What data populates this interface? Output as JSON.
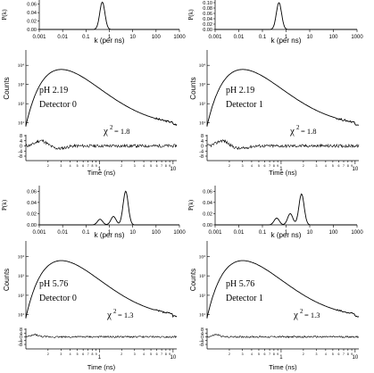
{
  "chart_data": [
    {
      "type": "line",
      "title": "",
      "panel": "pH 2.19 Detector 0",
      "pk_label": "P(k)",
      "k_label": "k (per ns)",
      "k_ticks": [
        "0.001",
        "0.01",
        "0.1",
        "1",
        "10",
        "100",
        "1000"
      ],
      "pk_ticks": [
        "0.00",
        "0.02",
        "0.04",
        "0.06"
      ],
      "pk_range": [
        0,
        0.07
      ],
      "k_peaks": [
        {
          "k": 0.5,
          "p": 0.065
        }
      ],
      "counts_label": "Counts",
      "counts_ticks": [
        "10¹",
        "10²",
        "10³",
        "10⁴"
      ],
      "ph_label": "pH 2.19",
      "detector_label": "Detector 0",
      "chi_label": "χ",
      "chi_sup": "2",
      "chi_value": "= 1.8",
      "resid_ticks": [
        "8",
        "4",
        "0",
        "-4",
        "-8"
      ],
      "time_label": "Time (ns)",
      "time_major_ticks": [
        "1",
        "10"
      ],
      "time_minor_ticks": [
        "2",
        "3",
        "4",
        "5",
        "6",
        "7",
        "8",
        "9",
        "2",
        "3",
        "4",
        "5",
        "6",
        "7",
        "8",
        "9"
      ]
    },
    {
      "type": "line",
      "title": "",
      "panel": "pH 2.19 Detector 1",
      "pk_label": "P(k)",
      "k_label": "k (per ns)",
      "k_ticks": [
        "0.001",
        "0.01",
        "0.1",
        "1",
        "10",
        "100",
        "1000"
      ],
      "pk_ticks": [
        "0.00",
        "0.02",
        "0.04",
        "0.06",
        "0.08",
        "0.10"
      ],
      "pk_range": [
        0,
        0.11
      ],
      "k_peaks": [
        {
          "k": 0.5,
          "p": 0.1
        }
      ],
      "counts_label": "Counts",
      "counts_ticks": [
        "10¹",
        "10²",
        "10³",
        "10⁴"
      ],
      "ph_label": "pH 2.19",
      "detector_label": "Detector 1",
      "chi_label": "χ",
      "chi_sup": "2",
      "chi_value": "= 1.8",
      "resid_ticks": [
        "8",
        "4",
        "0",
        "-4",
        "-8"
      ],
      "time_label": "Time (ns)",
      "time_major_ticks": [
        "1",
        "10"
      ],
      "time_minor_ticks": [
        "2",
        "3",
        "4",
        "5",
        "6",
        "7",
        "8",
        "9",
        "2",
        "3",
        "4",
        "5",
        "6",
        "7",
        "8",
        "9"
      ]
    },
    {
      "type": "line",
      "title": "",
      "panel": "pH 5.76 Detector 0",
      "pk_label": "P(k)",
      "k_label": "k (per ns)",
      "k_ticks": [
        "0.001",
        "0.01",
        "0.1",
        "1",
        "10",
        "100",
        "1000"
      ],
      "pk_ticks": [
        "0.00",
        "0.02",
        "0.04",
        "0.06"
      ],
      "pk_range": [
        0,
        0.07
      ],
      "k_peaks": [
        {
          "k": 0.4,
          "p": 0.01
        },
        {
          "k": 1.5,
          "p": 0.015
        },
        {
          "k": 5.0,
          "p": 0.06
        }
      ],
      "counts_label": "Counts",
      "counts_ticks": [
        "10¹",
        "10²",
        "10³",
        "10⁴"
      ],
      "ph_label": "pH 5.76",
      "detector_label": "Detector 0",
      "chi_label": "χ",
      "chi_sup": "2",
      "chi_value": "= 1.3",
      "resid_ticks": [
        "8",
        "4",
        "0",
        "-4",
        "-8"
      ],
      "time_label": "Time (ns)",
      "time_major_ticks": [
        "1",
        "10"
      ],
      "time_minor_ticks": [
        "2",
        "3",
        "4",
        "5",
        "6",
        "7",
        "8",
        "9",
        "2",
        "3",
        "4",
        "5",
        "6",
        "7",
        "8",
        "9"
      ]
    },
    {
      "type": "line",
      "title": "",
      "panel": "pH 5.76 Detector 1",
      "pk_label": "P(k)",
      "k_label": "k (per ns)",
      "k_ticks": [
        "0.001",
        "0.01",
        "0.1",
        "1",
        "10",
        "100",
        "1000"
      ],
      "pk_ticks": [
        "0.00",
        "0.02",
        "0.04",
        "0.06"
      ],
      "pk_range": [
        0,
        0.07
      ],
      "k_peaks": [
        {
          "k": 0.4,
          "p": 0.012
        },
        {
          "k": 1.5,
          "p": 0.02
        },
        {
          "k": 4.5,
          "p": 0.055
        }
      ],
      "counts_label": "Counts",
      "counts_ticks": [
        "10¹",
        "10²",
        "10³",
        "10⁴"
      ],
      "ph_label": "pH 5.76",
      "detector_label": "Detector 1",
      "chi_label": "χ",
      "chi_sup": "2",
      "chi_value": "= 1.3",
      "resid_ticks": [
        "8",
        "4",
        "0",
        "-4",
        "-8"
      ],
      "time_label": "Time (ns)",
      "time_major_ticks": [
        "1",
        "10"
      ],
      "time_minor_ticks": [
        "2",
        "3",
        "4",
        "5",
        "6",
        "7",
        "8",
        "9",
        "2",
        "3",
        "4",
        "5",
        "6",
        "7",
        "8",
        "9"
      ]
    }
  ]
}
